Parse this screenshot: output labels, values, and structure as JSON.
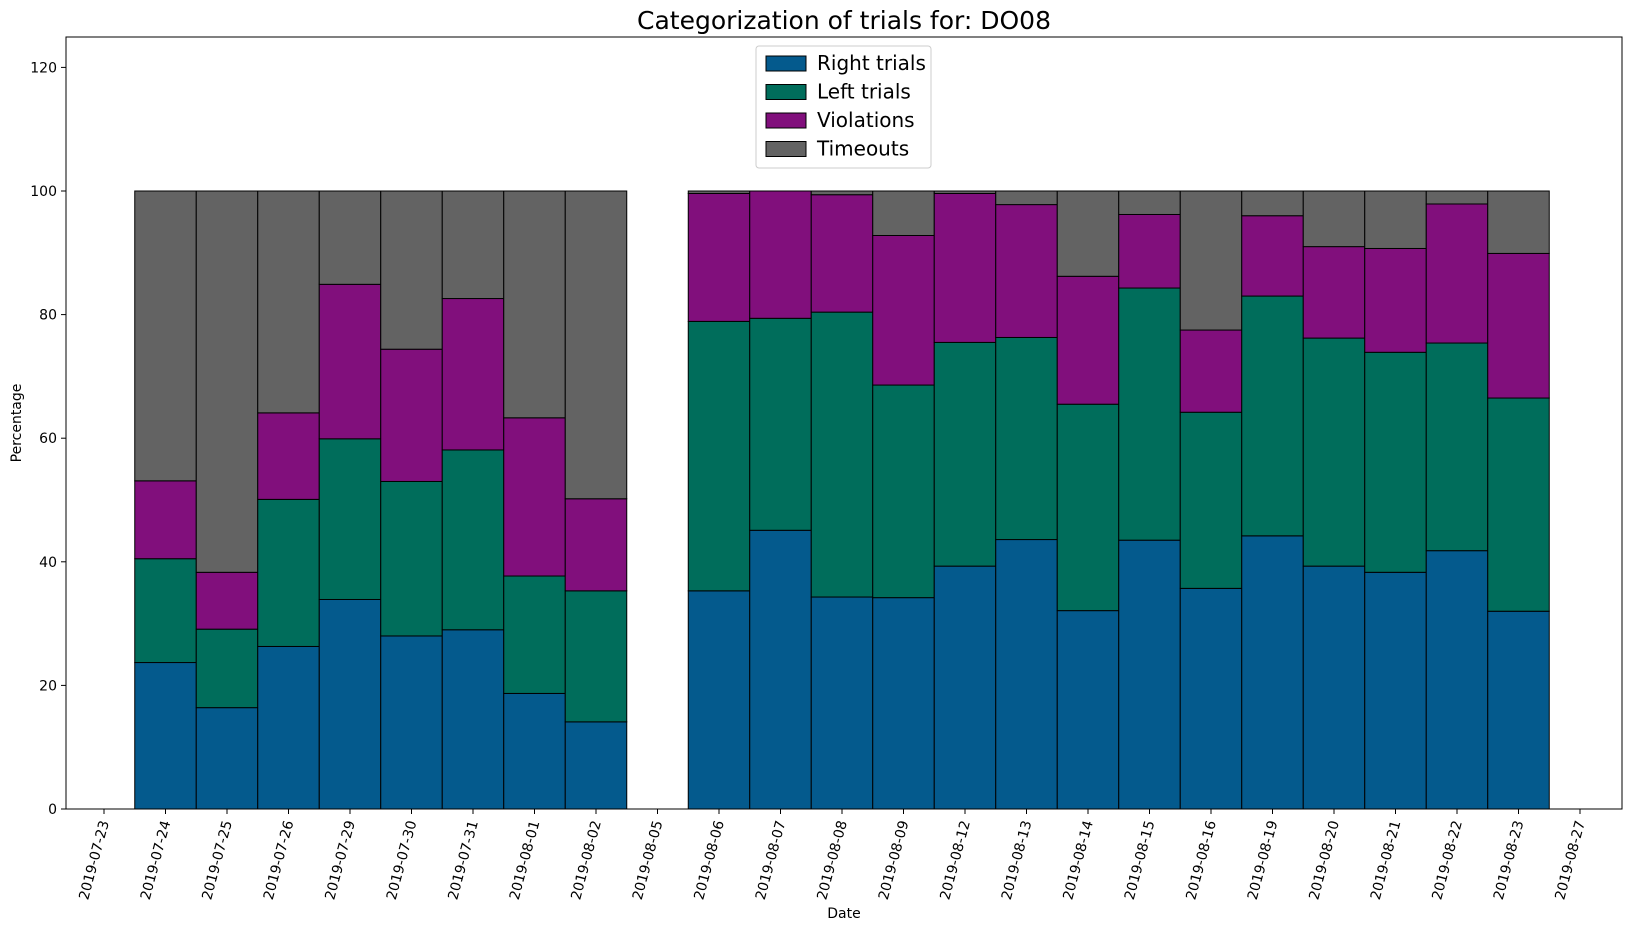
{
  "chart_data": {
    "type": "bar",
    "stacked": true,
    "title": "Categorization of trials for: DO08",
    "xlabel": "Date",
    "ylabel": "Percentage",
    "ylim": [
      0,
      125
    ],
    "yticks": [
      0,
      20,
      40,
      60,
      80,
      100,
      120
    ],
    "xtick_labels": [
      "2019-07-23",
      "2019-07-24",
      "2019-07-25",
      "2019-07-26",
      "2019-07-29",
      "2019-07-30",
      "2019-07-31",
      "2019-08-01",
      "2019-08-02",
      "2019-08-05",
      "2019-08-06",
      "2019-08-07",
      "2019-08-08",
      "2019-08-09",
      "2019-08-12",
      "2019-08-13",
      "2019-08-14",
      "2019-08-15",
      "2019-08-16",
      "2019-08-19",
      "2019-08-20",
      "2019-08-21",
      "2019-08-22",
      "2019-08-23",
      "2019-08-27"
    ],
    "categories": [
      "2019-07-24",
      "2019-07-25",
      "2019-07-26",
      "2019-07-29",
      "2019-07-30",
      "2019-07-31",
      "2019-08-01",
      "2019-08-02",
      "2019-08-06",
      "2019-08-07",
      "2019-08-08",
      "2019-08-09",
      "2019-08-12",
      "2019-08-13",
      "2019-08-14",
      "2019-08-15",
      "2019-08-16",
      "2019-08-19",
      "2019-08-20",
      "2019-08-21",
      "2019-08-22",
      "2019-08-23"
    ],
    "grid": false,
    "legend_position": "top-center",
    "series": [
      {
        "name": "Right trials",
        "color": "#045a8d",
        "values": [
          23.7,
          16.4,
          26.3,
          33.9,
          28.0,
          29.0,
          18.7,
          14.1,
          35.3,
          45.1,
          34.3,
          34.2,
          39.3,
          43.6,
          32.1,
          43.5,
          35.7,
          44.2,
          39.3,
          38.3,
          41.8,
          32.0
        ]
      },
      {
        "name": "Left trials",
        "color": "#006d5b",
        "values": [
          16.8,
          12.7,
          23.8,
          26.0,
          25.0,
          29.1,
          19.0,
          21.2,
          43.6,
          34.3,
          46.1,
          34.4,
          36.2,
          32.7,
          33.4,
          40.8,
          28.5,
          38.8,
          36.9,
          35.6,
          33.6,
          34.5
        ]
      },
      {
        "name": "Violations",
        "color": "#810f7c",
        "values": [
          12.6,
          9.2,
          14.0,
          25.0,
          21.4,
          24.5,
          25.6,
          14.9,
          20.7,
          20.6,
          19.0,
          24.2,
          24.1,
          21.5,
          20.7,
          11.9,
          13.3,
          13.0,
          14.8,
          16.8,
          22.5,
          23.4
        ]
      },
      {
        "name": "Timeouts",
        "color": "#636363",
        "values": [
          46.9,
          61.7,
          35.9,
          15.1,
          25.6,
          17.4,
          36.7,
          49.8,
          0.4,
          0.0,
          0.6,
          7.2,
          0.4,
          2.2,
          13.8,
          3.8,
          22.5,
          4.0,
          9.0,
          9.3,
          2.1,
          10.1
        ]
      }
    ]
  }
}
